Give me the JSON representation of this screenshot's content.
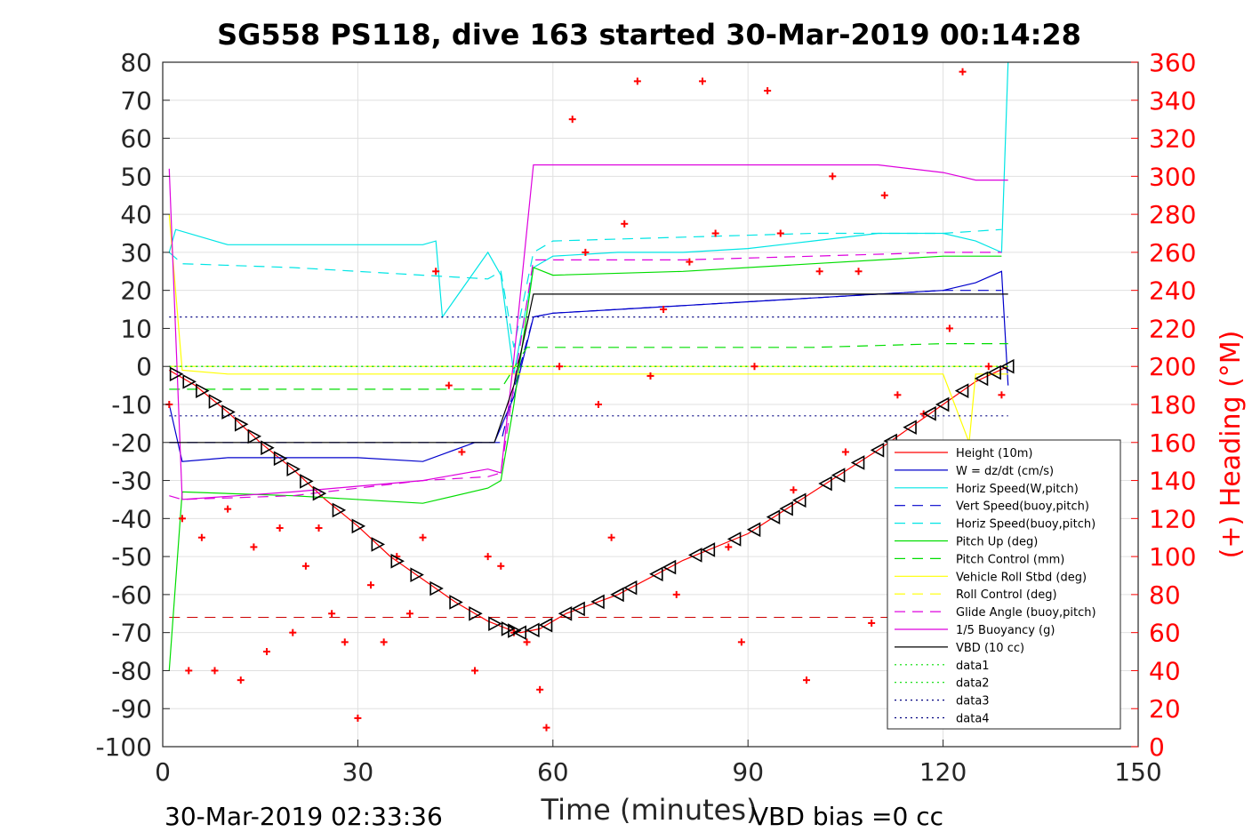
{
  "chart_data": {
    "type": "line",
    "title": "SG558 PS118, dive 163 started 30-Mar-2019 00:14:28",
    "xlabel": "Time (minutes)",
    "ylabel_right": "(+) Heading (°M)",
    "footer_left": "30-Mar-2019 02:33:36",
    "footer_right": "VBD bias =0 cc",
    "xlim": [
      0,
      150
    ],
    "ylim": [
      -100,
      80
    ],
    "ylim_right": [
      0,
      360
    ],
    "x_ticks": [
      0,
      30,
      60,
      90,
      120,
      150
    ],
    "y_ticks": [
      80,
      70,
      60,
      50,
      40,
      30,
      20,
      10,
      0,
      -10,
      -20,
      -30,
      -40,
      -50,
      -60,
      -70,
      -80,
      -90,
      -100
    ],
    "y_right_ticks": [
      360,
      340,
      320,
      300,
      280,
      260,
      240,
      220,
      200,
      180,
      160,
      140,
      120,
      100,
      80,
      60,
      40,
      20,
      0
    ],
    "grid": true,
    "legend_position": "bottom-right",
    "colors": {
      "height": "#ff0000",
      "w": "#0000cc",
      "horiz_speed": "#00e5e5",
      "vert_speed_buoy": "#0000cc",
      "horiz_speed_buoy": "#00e5e5",
      "pitch_up": "#00dd00",
      "pitch_control": "#00dd00",
      "roll": "#ffff00",
      "roll_control": "#ffff00",
      "glide_angle": "#dd00dd",
      "buoyancy": "#dd00dd",
      "vbd": "#000000",
      "data1": "#00dd00",
      "data2": "#00dd00",
      "data3": "#000080",
      "data4": "#000080",
      "heading": "#ff0000"
    },
    "series": [
      {
        "name": "Height (10m)",
        "x": [
          1,
          5,
          10,
          15,
          20,
          25,
          30,
          35,
          40,
          45,
          50,
          53,
          55,
          58,
          62,
          70,
          80,
          90,
          100,
          110,
          120,
          125,
          130
        ],
        "values": [
          -1,
          -5,
          -12,
          -20,
          -27,
          -35,
          -42,
          -50,
          -56,
          -62,
          -67,
          -69,
          -70,
          -69,
          -65,
          -60,
          -51,
          -44,
          -33,
          -22,
          -10,
          -4,
          0
        ]
      },
      {
        "name": "W = dz/dt (cm/s)",
        "x": [
          1,
          3,
          10,
          20,
          30,
          40,
          48,
          51,
          54,
          57,
          60,
          70,
          80,
          90,
          100,
          110,
          120,
          125,
          129,
          130
        ],
        "values": [
          -10,
          -25,
          -24,
          -24,
          -24,
          -25,
          -20,
          -20,
          -8,
          13,
          14,
          15,
          16,
          17,
          18,
          19,
          20,
          22,
          25,
          -5
        ]
      },
      {
        "name": "Horiz Speed(W,pitch)",
        "x": [
          1,
          2,
          10,
          20,
          30,
          40,
          42,
          43,
          50,
          52,
          54,
          57,
          60,
          70,
          80,
          90,
          100,
          110,
          120,
          125,
          129,
          130
        ],
        "values": [
          30,
          36,
          32,
          32,
          32,
          32,
          33,
          13,
          30,
          24,
          -2,
          26,
          29,
          30,
          30,
          31,
          33,
          35,
          35,
          33,
          30,
          80
        ]
      },
      {
        "name": "Vert Speed(buoy,pitch)",
        "x": [
          1,
          3,
          20,
          40,
          50,
          52,
          54,
          57,
          60,
          80,
          100,
          120,
          129
        ],
        "values": [
          -20,
          -20,
          -20,
          -20,
          -20,
          -20,
          -6,
          13,
          14,
          16,
          18,
          20,
          20
        ]
      },
      {
        "name": "Horiz Speed(buoy,pitch)",
        "x": [
          1,
          3,
          20,
          40,
          50,
          52,
          54,
          57,
          60,
          80,
          100,
          120,
          129
        ],
        "values": [
          30,
          27,
          26,
          24,
          23,
          25,
          5,
          30,
          33,
          34,
          35,
          35,
          36
        ]
      },
      {
        "name": "Pitch Up (deg)",
        "x": [
          1,
          3,
          20,
          40,
          50,
          52,
          54,
          57,
          60,
          80,
          100,
          120,
          129
        ],
        "values": [
          -80,
          -33,
          -34,
          -36,
          -32,
          -30,
          -10,
          26,
          24,
          25,
          27,
          29,
          29
        ]
      },
      {
        "name": "Pitch Control (mm)",
        "x": [
          1,
          10,
          30,
          50,
          52,
          56,
          60,
          80,
          100,
          120,
          130
        ],
        "values": [
          -6,
          -6,
          -6,
          -6,
          -6,
          5,
          5,
          5,
          5,
          6,
          6
        ]
      },
      {
        "name": "Vehicle Roll Stbd (deg)",
        "x": [
          1,
          3,
          10,
          20,
          30,
          40,
          50,
          55,
          60,
          70,
          80,
          90,
          100,
          110,
          120,
          124,
          125,
          130
        ],
        "values": [
          40,
          -1,
          -2,
          -2,
          -2,
          -2,
          -2,
          -2,
          -2,
          -2,
          -2,
          -2,
          -2,
          -2,
          -2,
          -20,
          -2,
          -2
        ]
      },
      {
        "name": "Roll Control (deg)",
        "x": [
          1,
          130
        ],
        "values": [
          0,
          0
        ]
      },
      {
        "name": "Glide Angle (buoy,pitch)",
        "x": [
          1,
          3,
          20,
          40,
          50,
          52,
          54,
          57,
          60,
          80,
          100,
          120,
          129
        ],
        "values": [
          -34,
          -35,
          -34,
          -30,
          -29,
          -28,
          -5,
          28,
          28,
          28,
          29,
          30,
          30
        ]
      },
      {
        "name": "1/5 Buoyancy (g)",
        "x": [
          1,
          3,
          20,
          40,
          50,
          52,
          54,
          57,
          60,
          80,
          100,
          110,
          120,
          125,
          130
        ],
        "values": [
          52,
          -35,
          -33,
          -30,
          -27,
          -28,
          2,
          53,
          53,
          53,
          53,
          53,
          51,
          49,
          49
        ]
      },
      {
        "name": "VBD (10 cc)",
        "x": [
          1,
          2,
          40,
          50,
          51,
          54,
          57,
          60,
          130
        ],
        "values": [
          -20,
          -20,
          -20,
          -20,
          -20,
          -5,
          19,
          19,
          19
        ]
      },
      {
        "name": "data1",
        "x": [
          1,
          130
        ],
        "values": [
          0,
          0
        ]
      },
      {
        "name": "data2",
        "x": [
          1,
          130
        ],
        "values": [
          0,
          0
        ]
      },
      {
        "name": "data3",
        "x": [
          1,
          130
        ],
        "values": [
          13,
          13
        ]
      },
      {
        "name": "data4",
        "x": [
          1,
          130
        ],
        "values": [
          -13,
          -13
        ]
      }
    ],
    "height_reference_value": -66,
    "height_markers_x": [
      2,
      4,
      6,
      8,
      10,
      12,
      14,
      16,
      18,
      20,
      22,
      24,
      27,
      30,
      33,
      36,
      39,
      42,
      45,
      48,
      51,
      53,
      54,
      55,
      57,
      59,
      62,
      64,
      67,
      70,
      72,
      76,
      78,
      82,
      84,
      88,
      91,
      94,
      96,
      98,
      102,
      104,
      107,
      110,
      112,
      115,
      118,
      120,
      123,
      126,
      128,
      130
    ],
    "heading": {
      "name": "(+) Heading (°M)",
      "x": [
        1,
        3,
        4,
        6,
        8,
        10,
        12,
        14,
        16,
        18,
        20,
        22,
        24,
        26,
        28,
        30,
        32,
        34,
        36,
        38,
        40,
        42,
        44,
        46,
        48,
        50,
        52,
        54,
        56,
        58,
        59,
        61,
        63,
        65,
        67,
        69,
        71,
        73,
        75,
        77,
        79,
        81,
        83,
        85,
        87,
        89,
        91,
        93,
        95,
        97,
        99,
        101,
        103,
        105,
        107,
        109,
        111,
        113,
        115,
        117,
        119,
        121,
        123,
        125,
        127,
        129
      ],
      "values": [
        180,
        120,
        40,
        110,
        40,
        125,
        35,
        105,
        50,
        115,
        60,
        95,
        115,
        70,
        55,
        15,
        85,
        55,
        100,
        70,
        110,
        250,
        190,
        155,
        40,
        100,
        95,
        60,
        55,
        30,
        10,
        200,
        330,
        260,
        180,
        110,
        275,
        350,
        195,
        230,
        80,
        255,
        350,
        270,
        105,
        55,
        200,
        345,
        270,
        135,
        35,
        250,
        300,
        155,
        250,
        65,
        290,
        185,
        75,
        175,
        75,
        220,
        355,
        120,
        200,
        185
      ]
    },
    "legend": [
      {
        "label": "Height (10m)",
        "color": "#ff0000",
        "dash": "solid"
      },
      {
        "label": "W = dz/dt (cm/s)",
        "color": "#0000cc",
        "dash": "solid"
      },
      {
        "label": "Horiz Speed(W,pitch)",
        "color": "#00e5e5",
        "dash": "solid"
      },
      {
        "label": "Vert Speed(buoy,pitch)",
        "color": "#0000cc",
        "dash": "dashed"
      },
      {
        "label": "Horiz Speed(buoy,pitch)",
        "color": "#00e5e5",
        "dash": "dashed"
      },
      {
        "label": "Pitch Up (deg)",
        "color": "#00dd00",
        "dash": "solid"
      },
      {
        "label": "Pitch Control (mm)",
        "color": "#00dd00",
        "dash": "dashed"
      },
      {
        "label": "Vehicle Roll Stbd (deg)",
        "color": "#ffff00",
        "dash": "solid"
      },
      {
        "label": "Roll Control (deg)",
        "color": "#ffff00",
        "dash": "dashed"
      },
      {
        "label": "Glide Angle (buoy,pitch)",
        "color": "#dd00dd",
        "dash": "dashed"
      },
      {
        "label": "1/5 Buoyancy (g)",
        "color": "#dd00dd",
        "dash": "solid"
      },
      {
        "label": "VBD (10 cc)",
        "color": "#000000",
        "dash": "solid"
      },
      {
        "label": "data1",
        "color": "#00dd00",
        "dash": "dotted"
      },
      {
        "label": "data2",
        "color": "#00dd00",
        "dash": "dotted"
      },
      {
        "label": "data3",
        "color": "#000080",
        "dash": "dotted"
      },
      {
        "label": "data4",
        "color": "#000080",
        "dash": "dotted"
      }
    ]
  }
}
